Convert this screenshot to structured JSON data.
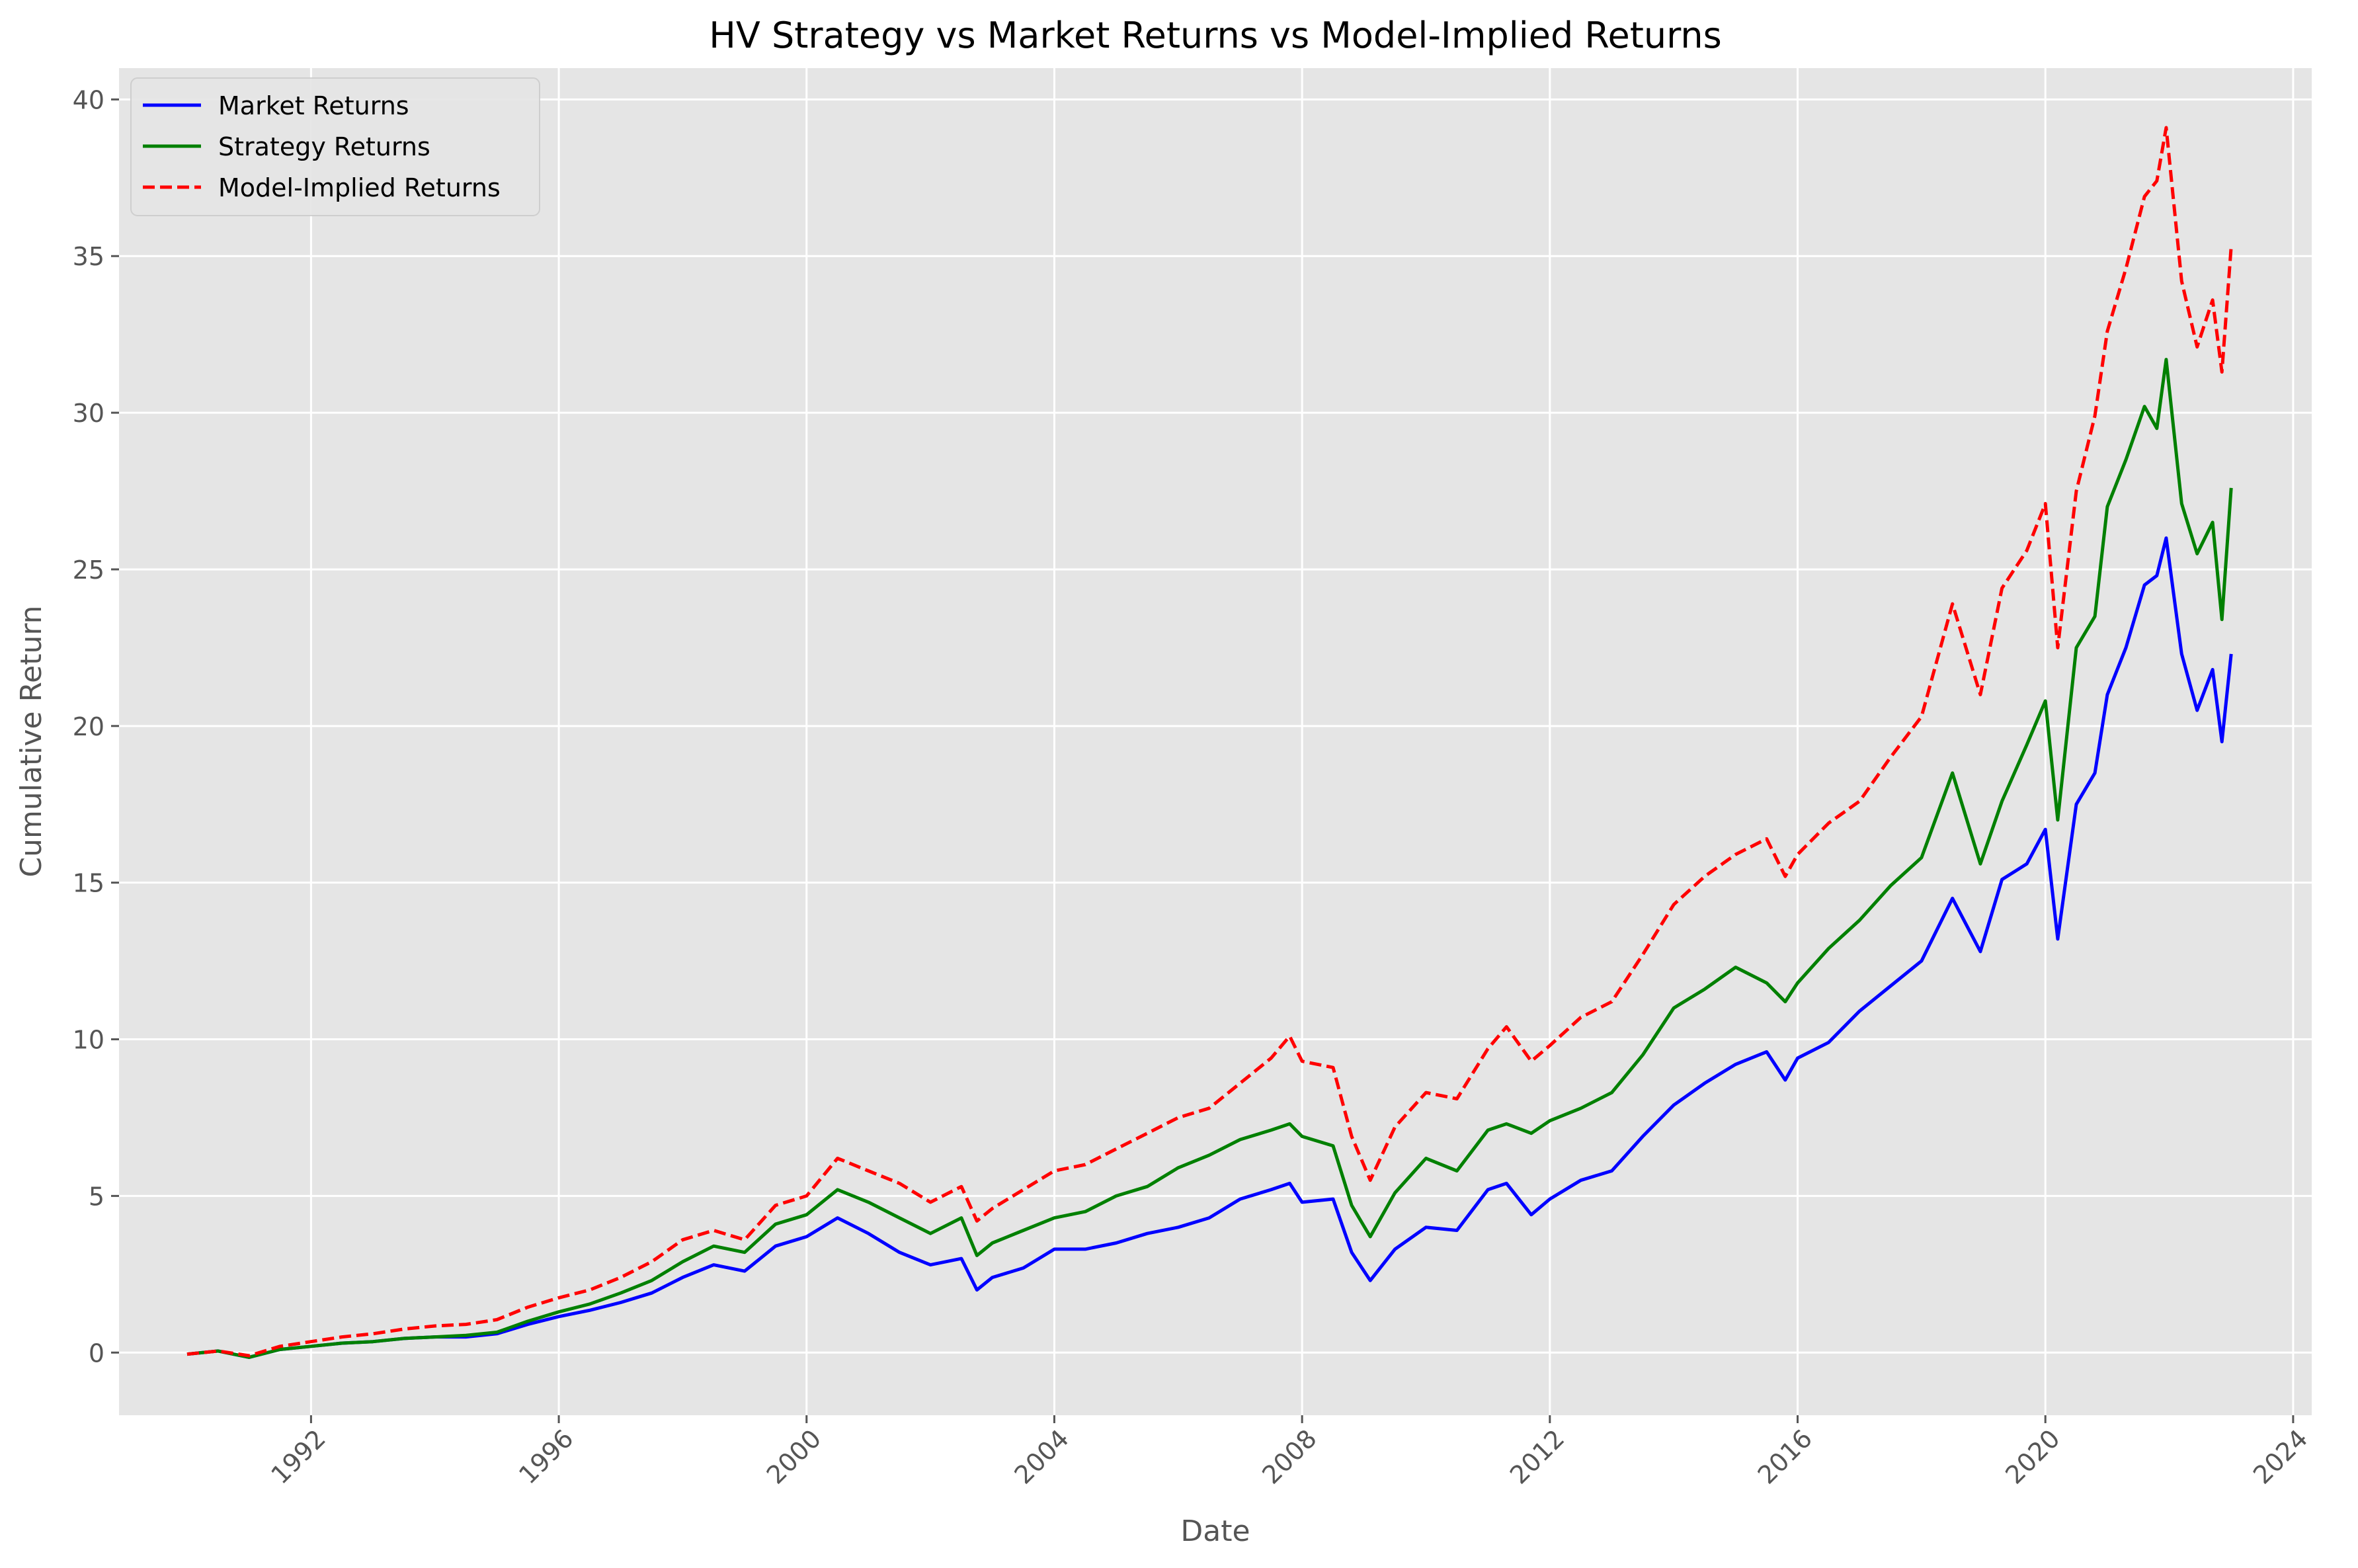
{
  "chart_data": {
    "type": "line",
    "title": "HV Strategy vs Market Returns vs Model-Implied Returns",
    "xlabel": "Date",
    "ylabel": "Cumulative Return",
    "xlim": [
      1988.9,
      2024.3
    ],
    "ylim": [
      -2.0,
      41.0
    ],
    "x_ticks": [
      1992,
      1996,
      2000,
      2004,
      2008,
      2012,
      2016,
      2020,
      2024
    ],
    "y_ticks": [
      0,
      5,
      10,
      15,
      20,
      25,
      30,
      35,
      40
    ],
    "grid": true,
    "legend_position": "top-left",
    "series": [
      {
        "name": "Market Returns",
        "color": "#0000ff",
        "style": "solid",
        "x": [
          1990.0,
          1990.5,
          1991.0,
          1991.5,
          1992.0,
          1992.5,
          1993.0,
          1993.5,
          1994.0,
          1994.5,
          1995.0,
          1995.5,
          1996.0,
          1996.5,
          1997.0,
          1997.5,
          1998.0,
          1998.5,
          1999.0,
          1999.5,
          2000.0,
          2000.5,
          2001.0,
          2001.5,
          2002.0,
          2002.5,
          2002.75,
          2003.0,
          2003.5,
          2004.0,
          2004.5,
          2005.0,
          2005.5,
          2006.0,
          2006.5,
          2007.0,
          2007.5,
          2007.8,
          2008.0,
          2008.5,
          2008.8,
          2009.1,
          2009.5,
          2010.0,
          2010.5,
          2011.0,
          2011.3,
          2011.7,
          2012.0,
          2012.5,
          2013.0,
          2013.5,
          2014.0,
          2014.5,
          2015.0,
          2015.5,
          2015.8,
          2016.0,
          2016.5,
          2017.0,
          2017.5,
          2018.0,
          2018.5,
          2018.95,
          2019.3,
          2019.7,
          2020.0,
          2020.2,
          2020.5,
          2020.8,
          2021.0,
          2021.3,
          2021.6,
          2021.8,
          2021.95,
          2022.2,
          2022.45,
          2022.7,
          2022.85,
          2023.0
        ],
        "values": [
          -0.05,
          0.05,
          -0.15,
          0.1,
          0.2,
          0.3,
          0.35,
          0.45,
          0.5,
          0.5,
          0.6,
          0.9,
          1.15,
          1.35,
          1.6,
          1.9,
          2.4,
          2.8,
          2.6,
          3.4,
          3.7,
          4.3,
          3.8,
          3.2,
          2.8,
          3.0,
          2.0,
          2.4,
          2.7,
          3.3,
          3.3,
          3.5,
          3.8,
          4.0,
          4.3,
          4.9,
          5.2,
          5.4,
          4.8,
          4.9,
          3.2,
          2.3,
          3.3,
          4.0,
          3.9,
          5.2,
          5.4,
          4.4,
          4.9,
          5.5,
          5.8,
          6.9,
          7.9,
          8.6,
          9.2,
          9.6,
          8.7,
          9.4,
          9.9,
          10.9,
          11.7,
          12.5,
          14.5,
          12.8,
          15.1,
          15.6,
          16.7,
          13.2,
          17.5,
          18.5,
          21.0,
          22.5,
          24.5,
          24.8,
          26.0,
          22.3,
          20.5,
          21.8,
          19.5,
          22.3
        ]
      },
      {
        "name": "Strategy Returns",
        "color": "#008000",
        "style": "solid",
        "x": [
          1990.0,
          1990.5,
          1991.0,
          1991.5,
          1992.0,
          1992.5,
          1993.0,
          1993.5,
          1994.0,
          1994.5,
          1995.0,
          1995.5,
          1996.0,
          1996.5,
          1997.0,
          1997.5,
          1998.0,
          1998.5,
          1999.0,
          1999.5,
          2000.0,
          2000.5,
          2001.0,
          2001.5,
          2002.0,
          2002.5,
          2002.75,
          2003.0,
          2003.5,
          2004.0,
          2004.5,
          2005.0,
          2005.5,
          2006.0,
          2006.5,
          2007.0,
          2007.5,
          2007.8,
          2008.0,
          2008.5,
          2008.8,
          2009.1,
          2009.5,
          2010.0,
          2010.5,
          2011.0,
          2011.3,
          2011.7,
          2012.0,
          2012.5,
          2013.0,
          2013.5,
          2014.0,
          2014.5,
          2015.0,
          2015.5,
          2015.8,
          2016.0,
          2016.5,
          2017.0,
          2017.5,
          2018.0,
          2018.5,
          2018.95,
          2019.3,
          2019.7,
          2020.0,
          2020.2,
          2020.5,
          2020.8,
          2021.0,
          2021.3,
          2021.6,
          2021.8,
          2021.95,
          2022.2,
          2022.45,
          2022.7,
          2022.85,
          2023.0
        ],
        "values": [
          -0.05,
          0.05,
          -0.15,
          0.1,
          0.2,
          0.3,
          0.35,
          0.45,
          0.5,
          0.55,
          0.65,
          1.0,
          1.3,
          1.55,
          1.9,
          2.3,
          2.9,
          3.4,
          3.2,
          4.1,
          4.4,
          5.2,
          4.8,
          4.3,
          3.8,
          4.3,
          3.1,
          3.5,
          3.9,
          4.3,
          4.5,
          5.0,
          5.3,
          5.9,
          6.3,
          6.8,
          7.1,
          7.3,
          6.9,
          6.6,
          4.7,
          3.7,
          5.1,
          6.2,
          5.8,
          7.1,
          7.3,
          7.0,
          7.4,
          7.8,
          8.3,
          9.5,
          11.0,
          11.6,
          12.3,
          11.8,
          11.2,
          11.8,
          12.9,
          13.8,
          14.9,
          15.8,
          18.5,
          15.6,
          17.6,
          19.4,
          20.8,
          17.0,
          22.5,
          23.5,
          27.0,
          28.5,
          30.2,
          29.5,
          31.7,
          27.1,
          25.5,
          26.5,
          23.4,
          27.6
        ]
      },
      {
        "name": "Model-Implied Returns",
        "color": "#ff0000",
        "style": "dashed",
        "x": [
          1990.0,
          1990.5,
          1991.0,
          1991.5,
          1992.0,
          1992.5,
          1993.0,
          1993.5,
          1994.0,
          1994.5,
          1995.0,
          1995.5,
          1996.0,
          1996.5,
          1997.0,
          1997.5,
          1998.0,
          1998.5,
          1999.0,
          1999.5,
          2000.0,
          2000.5,
          2001.0,
          2001.5,
          2002.0,
          2002.5,
          2002.75,
          2003.0,
          2003.5,
          2004.0,
          2004.5,
          2005.0,
          2005.5,
          2006.0,
          2006.5,
          2007.0,
          2007.5,
          2007.8,
          2008.0,
          2008.5,
          2008.8,
          2009.1,
          2009.5,
          2010.0,
          2010.5,
          2011.0,
          2011.3,
          2011.7,
          2012.0,
          2012.5,
          2013.0,
          2013.5,
          2014.0,
          2014.5,
          2015.0,
          2015.5,
          2015.8,
          2016.0,
          2016.5,
          2017.0,
          2017.5,
          2018.0,
          2018.5,
          2018.95,
          2019.3,
          2019.7,
          2020.0,
          2020.2,
          2020.5,
          2020.8,
          2021.0,
          2021.3,
          2021.6,
          2021.8,
          2021.95,
          2022.2,
          2022.45,
          2022.7,
          2022.85,
          2023.0
        ],
        "values": [
          -0.05,
          0.05,
          -0.1,
          0.2,
          0.35,
          0.5,
          0.6,
          0.75,
          0.85,
          0.9,
          1.05,
          1.45,
          1.75,
          2.0,
          2.4,
          2.9,
          3.6,
          3.9,
          3.6,
          4.7,
          5.0,
          6.2,
          5.8,
          5.4,
          4.8,
          5.3,
          4.2,
          4.6,
          5.2,
          5.8,
          6.0,
          6.5,
          7.0,
          7.5,
          7.8,
          8.6,
          9.4,
          10.1,
          9.3,
          9.1,
          6.9,
          5.5,
          7.2,
          8.3,
          8.1,
          9.7,
          10.4,
          9.3,
          9.8,
          10.7,
          11.2,
          12.7,
          14.3,
          15.2,
          15.9,
          16.4,
          15.2,
          15.9,
          16.9,
          17.6,
          19.0,
          20.3,
          23.9,
          21.0,
          24.4,
          25.6,
          27.1,
          22.5,
          27.5,
          29.9,
          32.6,
          34.6,
          36.9,
          37.4,
          39.1,
          34.2,
          32.1,
          33.6,
          31.3,
          35.3
        ]
      }
    ]
  }
}
